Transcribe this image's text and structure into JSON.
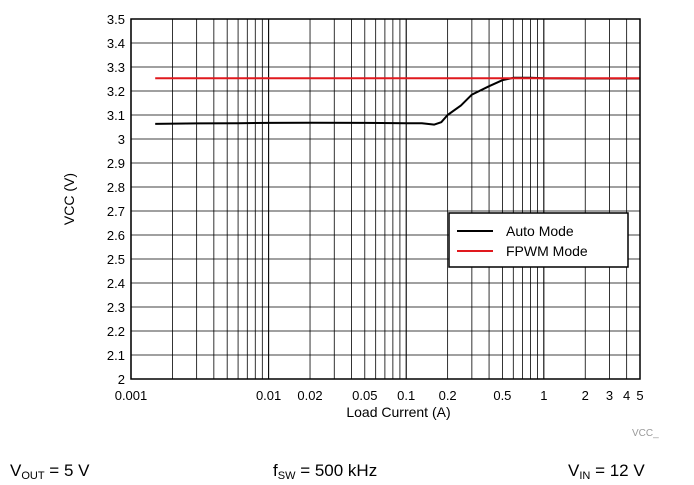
{
  "chart_data": {
    "type": "line",
    "xlabel": "Load Current (A)",
    "ylabel": "VCC (V)",
    "x_scale": "log",
    "xlim": [
      0.001,
      5
    ],
    "ylim": [
      2,
      3.5
    ],
    "x_ticks": [
      {
        "value": 0.001,
        "label": "0.001"
      },
      {
        "value": 0.01,
        "label": "0.01"
      },
      {
        "value": 0.02,
        "label": "0.02"
      },
      {
        "value": 0.05,
        "label": "0.05"
      },
      {
        "value": 0.1,
        "label": "0.1"
      },
      {
        "value": 0.2,
        "label": "0.2"
      },
      {
        "value": 0.5,
        "label": "0.5"
      },
      {
        "value": 1,
        "label": "1"
      },
      {
        "value": 2,
        "label": "2"
      },
      {
        "value": 3,
        "label": "3"
      },
      {
        "value": 4,
        "label": "4"
      },
      {
        "value": 5,
        "label": "5"
      }
    ],
    "y_ticks": [
      "2",
      "2.1",
      "2.2",
      "2.3",
      "2.4",
      "2.5",
      "2.6",
      "2.7",
      "2.8",
      "2.9",
      "3",
      "3.1",
      "3.2",
      "3.3",
      "3.4",
      "3.5"
    ],
    "grid": true,
    "legend_position": "center-right",
    "series": [
      {
        "name": "Auto Mode",
        "color": "#000000",
        "x": [
          0.0015,
          0.003,
          0.006,
          0.01,
          0.02,
          0.05,
          0.1,
          0.13,
          0.16,
          0.18,
          0.2,
          0.25,
          0.3,
          0.4,
          0.5,
          0.6,
          0.8,
          1,
          2,
          5
        ],
        "y": [
          3.063,
          3.065,
          3.066,
          3.067,
          3.068,
          3.067,
          3.066,
          3.066,
          3.06,
          3.07,
          3.1,
          3.14,
          3.185,
          3.22,
          3.245,
          3.255,
          3.255,
          3.253,
          3.252,
          3.252
        ]
      },
      {
        "name": "FPWM Mode",
        "color": "#e0191e",
        "x": [
          0.0015,
          0.01,
          0.1,
          1,
          5
        ],
        "y": [
          3.253,
          3.253,
          3.253,
          3.253,
          3.253
        ]
      }
    ]
  },
  "watermark": "VCC_",
  "conditions": {
    "vout": {
      "symbol": "V",
      "sub": "OUT",
      "value": " = 5 V"
    },
    "fsw": {
      "symbol": "f",
      "sub": "SW",
      "value": " = 500 kHz"
    },
    "vin": {
      "symbol": "V",
      "sub": "IN",
      "value": " = 12 V"
    }
  }
}
